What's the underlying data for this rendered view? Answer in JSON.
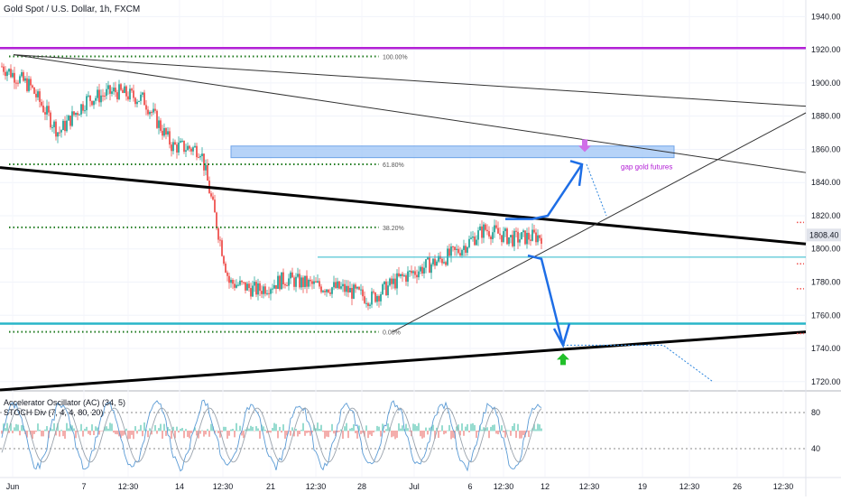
{
  "header": {
    "title": "Gold Spot / U.S. Dollar, 1h, FXCM"
  },
  "price_axis": {
    "ticks": [
      "1940.00",
      "1920.00",
      "1900.00",
      "1880.00",
      "1860.00",
      "1840.00",
      "1820.00",
      "1800.00",
      "1780.00",
      "1760.00",
      "1740.00",
      "1720.00"
    ],
    "current_price": "1808.40"
  },
  "time_axis": {
    "ticks": [
      "Jun",
      "7",
      "12:30",
      "14",
      "12:30",
      "21",
      "12:30",
      "28",
      "Jul",
      "6",
      "12:30",
      "12",
      "12:30",
      "19",
      "12:30",
      "26",
      "12:30"
    ]
  },
  "fibonacci": {
    "levels": [
      "100.00%",
      "61.80%",
      "38.20%",
      "0.00%"
    ]
  },
  "annotations": {
    "gap_label": "gap gold futures"
  },
  "indicators": {
    "ac_label": "Accelerator Oscillator (AC) (34, 5)",
    "stoch_label": "STOCH Div (7, 4, 4, 80, 20)",
    "ticks": [
      "80",
      "40"
    ]
  },
  "colors": {
    "magenta_line": "#b320d6",
    "cyan_line": "#29b6c9",
    "gap_zone": "#9ec4f5",
    "fib_dots": "#1d7a1d",
    "arrow_blue": "#1e6ee6",
    "candle_up": "#26a69a",
    "candle_down": "#ef5350",
    "green_marker": "#22c02a"
  },
  "chart_data": {
    "type": "candlestick",
    "symbol": "Gold Spot / U.S. Dollar",
    "timeframe": "1h",
    "x": [
      "Jun 1",
      "Jun 3",
      "Jun 5",
      "Jun 7",
      "Jun 9",
      "Jun 11",
      "Jun 14",
      "Jun 16",
      "Jun 18",
      "Jun 21",
      "Jun 23",
      "Jun 25",
      "Jun 28",
      "Jun 30",
      "Jul 1",
      "Jul 4",
      "Jul 6",
      "Jul 8",
      "Jul 10",
      "Jul 12"
    ],
    "close": [
      1910,
      1898,
      1870,
      1890,
      1895,
      1890,
      1862,
      1860,
      1780,
      1775,
      1782,
      1778,
      1776,
      1770,
      1782,
      1790,
      1798,
      1812,
      1806,
      1808
    ],
    "ylim": [
      1715,
      1950
    ],
    "current_price": 1808.4,
    "horizontal_levels": [
      {
        "price": 1921,
        "color": "magenta"
      },
      {
        "price": 1795,
        "color": "cyan"
      },
      {
        "price": 1755,
        "color": "cyan"
      }
    ],
    "gap_zone": {
      "from": 1855,
      "to": 1862
    },
    "fib_levels": [
      {
        "label": "100.00%",
        "price": 1916
      },
      {
        "label": "61.80%",
        "price": 1851
      },
      {
        "label": "38.20%",
        "price": 1813
      },
      {
        "label": "0.00%",
        "price": 1750
      }
    ],
    "indicator_ylim": [
      10,
      100
    ]
  }
}
